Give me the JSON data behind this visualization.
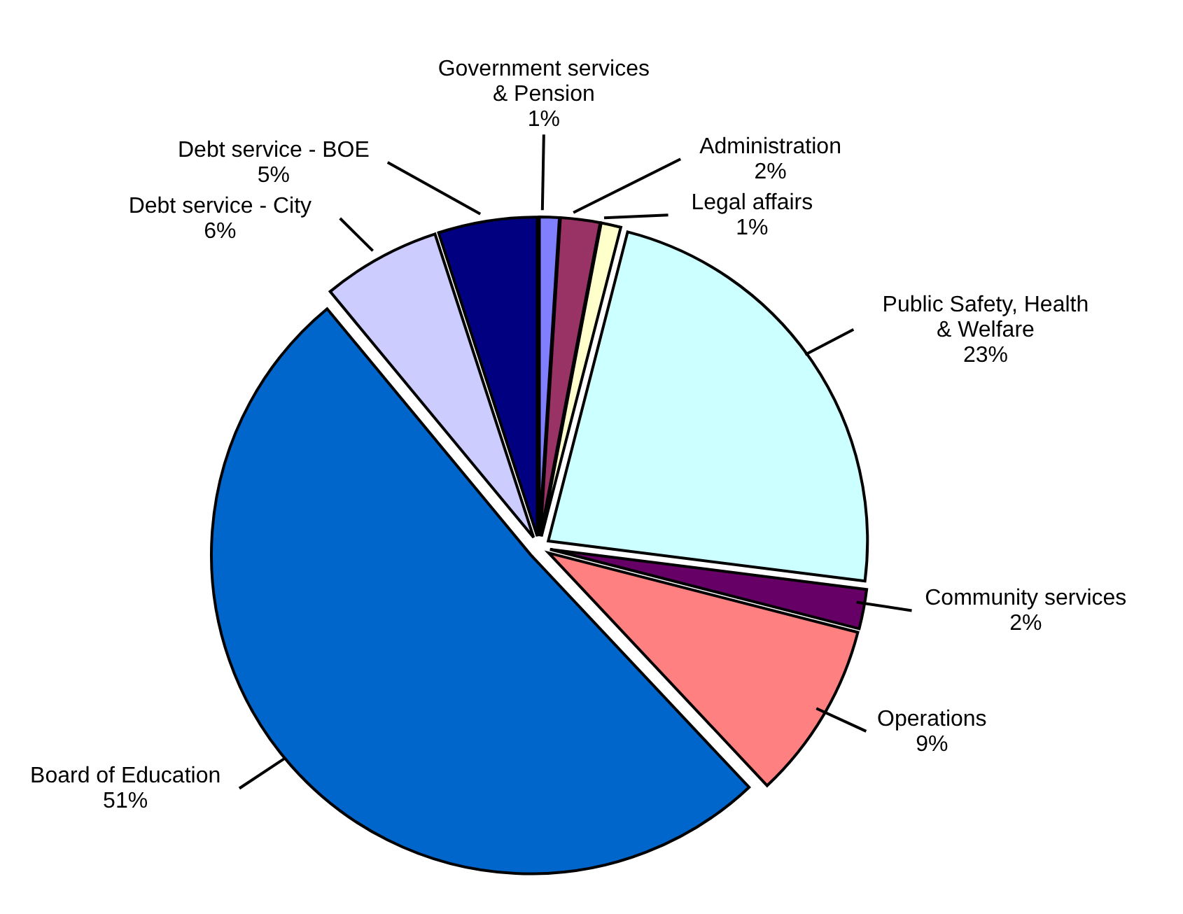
{
  "chart_data": {
    "type": "pie",
    "categories": [
      "Government services & Pension",
      "Administration",
      "Legal affairs",
      "Public Safety, Health & Welfare",
      "Community services",
      "Operations",
      "Board of Education",
      "Debt service - City",
      "Debt service - BOE"
    ],
    "values": [
      1,
      2,
      1,
      23,
      2,
      9,
      51,
      6,
      5
    ],
    "colors": [
      "#8080ff",
      "#993366",
      "#ffffcc",
      "#ccffff",
      "#660066",
      "#ff8080",
      "#0066cc",
      "#ccccff",
      "#000080"
    ],
    "value_labels": [
      "1%",
      "2%",
      "1%",
      "23%",
      "2%",
      "9%",
      "51%",
      "6%",
      "5%"
    ],
    "legend": false
  }
}
